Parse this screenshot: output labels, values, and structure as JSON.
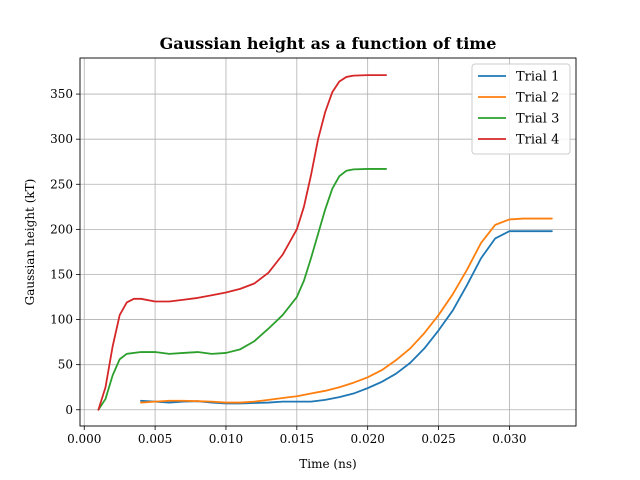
{
  "chart_data": {
    "type": "line",
    "title": "Gaussian height as a function of time",
    "xlabel": "Time (ns)",
    "ylabel": "Gaussian height (kT)",
    "xlim": [
      -0.0003,
      0.0347
    ],
    "ylim": [
      -18,
      390
    ],
    "xticks": [
      0.0,
      0.005,
      0.01,
      0.015,
      0.02,
      0.025,
      0.03
    ],
    "xtick_labels": [
      "0.000",
      "0.005",
      "0.010",
      "0.015",
      "0.020",
      "0.025",
      "0.030"
    ],
    "yticks": [
      0,
      50,
      100,
      150,
      200,
      250,
      300,
      350
    ],
    "ytick_labels": [
      "0",
      "50",
      "100",
      "150",
      "200",
      "250",
      "300",
      "350"
    ],
    "grid": true,
    "legend_position": "top-right",
    "series": [
      {
        "name": "Trial 1",
        "color": "#1f77b4",
        "points": [
          [
            0.004,
            10
          ],
          [
            0.005,
            9
          ],
          [
            0.006,
            8
          ],
          [
            0.007,
            9
          ],
          [
            0.008,
            9.5
          ],
          [
            0.009,
            8
          ],
          [
            0.01,
            7
          ],
          [
            0.011,
            7
          ],
          [
            0.012,
            7.5
          ],
          [
            0.013,
            8
          ],
          [
            0.014,
            9
          ],
          [
            0.015,
            9
          ],
          [
            0.016,
            9
          ],
          [
            0.017,
            11
          ],
          [
            0.018,
            14
          ],
          [
            0.019,
            18
          ],
          [
            0.02,
            24
          ],
          [
            0.021,
            31
          ],
          [
            0.022,
            40
          ],
          [
            0.023,
            52
          ],
          [
            0.024,
            68
          ],
          [
            0.025,
            88
          ],
          [
            0.026,
            110
          ],
          [
            0.027,
            138
          ],
          [
            0.028,
            168
          ],
          [
            0.029,
            190
          ],
          [
            0.03,
            198
          ],
          [
            0.031,
            198
          ],
          [
            0.032,
            198
          ],
          [
            0.033,
            198
          ]
        ]
      },
      {
        "name": "Trial 2",
        "color": "#ff7f0e",
        "points": [
          [
            0.004,
            8
          ],
          [
            0.005,
            9
          ],
          [
            0.006,
            10
          ],
          [
            0.007,
            10
          ],
          [
            0.008,
            9.5
          ],
          [
            0.009,
            9
          ],
          [
            0.01,
            8
          ],
          [
            0.011,
            8
          ],
          [
            0.012,
            9
          ],
          [
            0.013,
            11
          ],
          [
            0.014,
            13
          ],
          [
            0.015,
            15
          ],
          [
            0.016,
            18
          ],
          [
            0.017,
            21
          ],
          [
            0.018,
            25
          ],
          [
            0.019,
            30
          ],
          [
            0.02,
            36
          ],
          [
            0.021,
            44
          ],
          [
            0.022,
            55
          ],
          [
            0.023,
            68
          ],
          [
            0.024,
            85
          ],
          [
            0.025,
            105
          ],
          [
            0.026,
            128
          ],
          [
            0.027,
            155
          ],
          [
            0.028,
            185
          ],
          [
            0.029,
            205
          ],
          [
            0.03,
            211
          ],
          [
            0.031,
            212
          ],
          [
            0.032,
            212
          ],
          [
            0.033,
            212
          ]
        ]
      },
      {
        "name": "Trial 3",
        "color": "#2ca02c",
        "points": [
          [
            0.001,
            0
          ],
          [
            0.0015,
            12
          ],
          [
            0.002,
            38
          ],
          [
            0.0025,
            56
          ],
          [
            0.003,
            62
          ],
          [
            0.004,
            64
          ],
          [
            0.005,
            64
          ],
          [
            0.006,
            62
          ],
          [
            0.007,
            63
          ],
          [
            0.008,
            64
          ],
          [
            0.009,
            62
          ],
          [
            0.01,
            63
          ],
          [
            0.011,
            67
          ],
          [
            0.012,
            76
          ],
          [
            0.013,
            90
          ],
          [
            0.014,
            105
          ],
          [
            0.015,
            125
          ],
          [
            0.0155,
            143
          ],
          [
            0.016,
            168
          ],
          [
            0.0165,
            195
          ],
          [
            0.017,
            222
          ],
          [
            0.0175,
            245
          ],
          [
            0.018,
            259
          ],
          [
            0.0185,
            265
          ],
          [
            0.019,
            266.5
          ],
          [
            0.02,
            267
          ],
          [
            0.021,
            267
          ],
          [
            0.0213,
            267
          ]
        ]
      },
      {
        "name": "Trial 4",
        "color": "#d62728",
        "points": [
          [
            0.001,
            0
          ],
          [
            0.0015,
            25
          ],
          [
            0.002,
            70
          ],
          [
            0.0025,
            105
          ],
          [
            0.003,
            119
          ],
          [
            0.0035,
            123
          ],
          [
            0.004,
            123
          ],
          [
            0.005,
            120
          ],
          [
            0.006,
            120
          ],
          [
            0.007,
            122
          ],
          [
            0.008,
            124
          ],
          [
            0.009,
            127
          ],
          [
            0.01,
            130
          ],
          [
            0.011,
            134
          ],
          [
            0.012,
            140
          ],
          [
            0.013,
            152
          ],
          [
            0.014,
            172
          ],
          [
            0.015,
            200
          ],
          [
            0.0155,
            225
          ],
          [
            0.016,
            260
          ],
          [
            0.0165,
            300
          ],
          [
            0.017,
            330
          ],
          [
            0.0175,
            352
          ],
          [
            0.018,
            364
          ],
          [
            0.0185,
            369
          ],
          [
            0.019,
            370.5
          ],
          [
            0.02,
            371
          ],
          [
            0.021,
            371
          ],
          [
            0.0213,
            371
          ]
        ]
      }
    ]
  }
}
